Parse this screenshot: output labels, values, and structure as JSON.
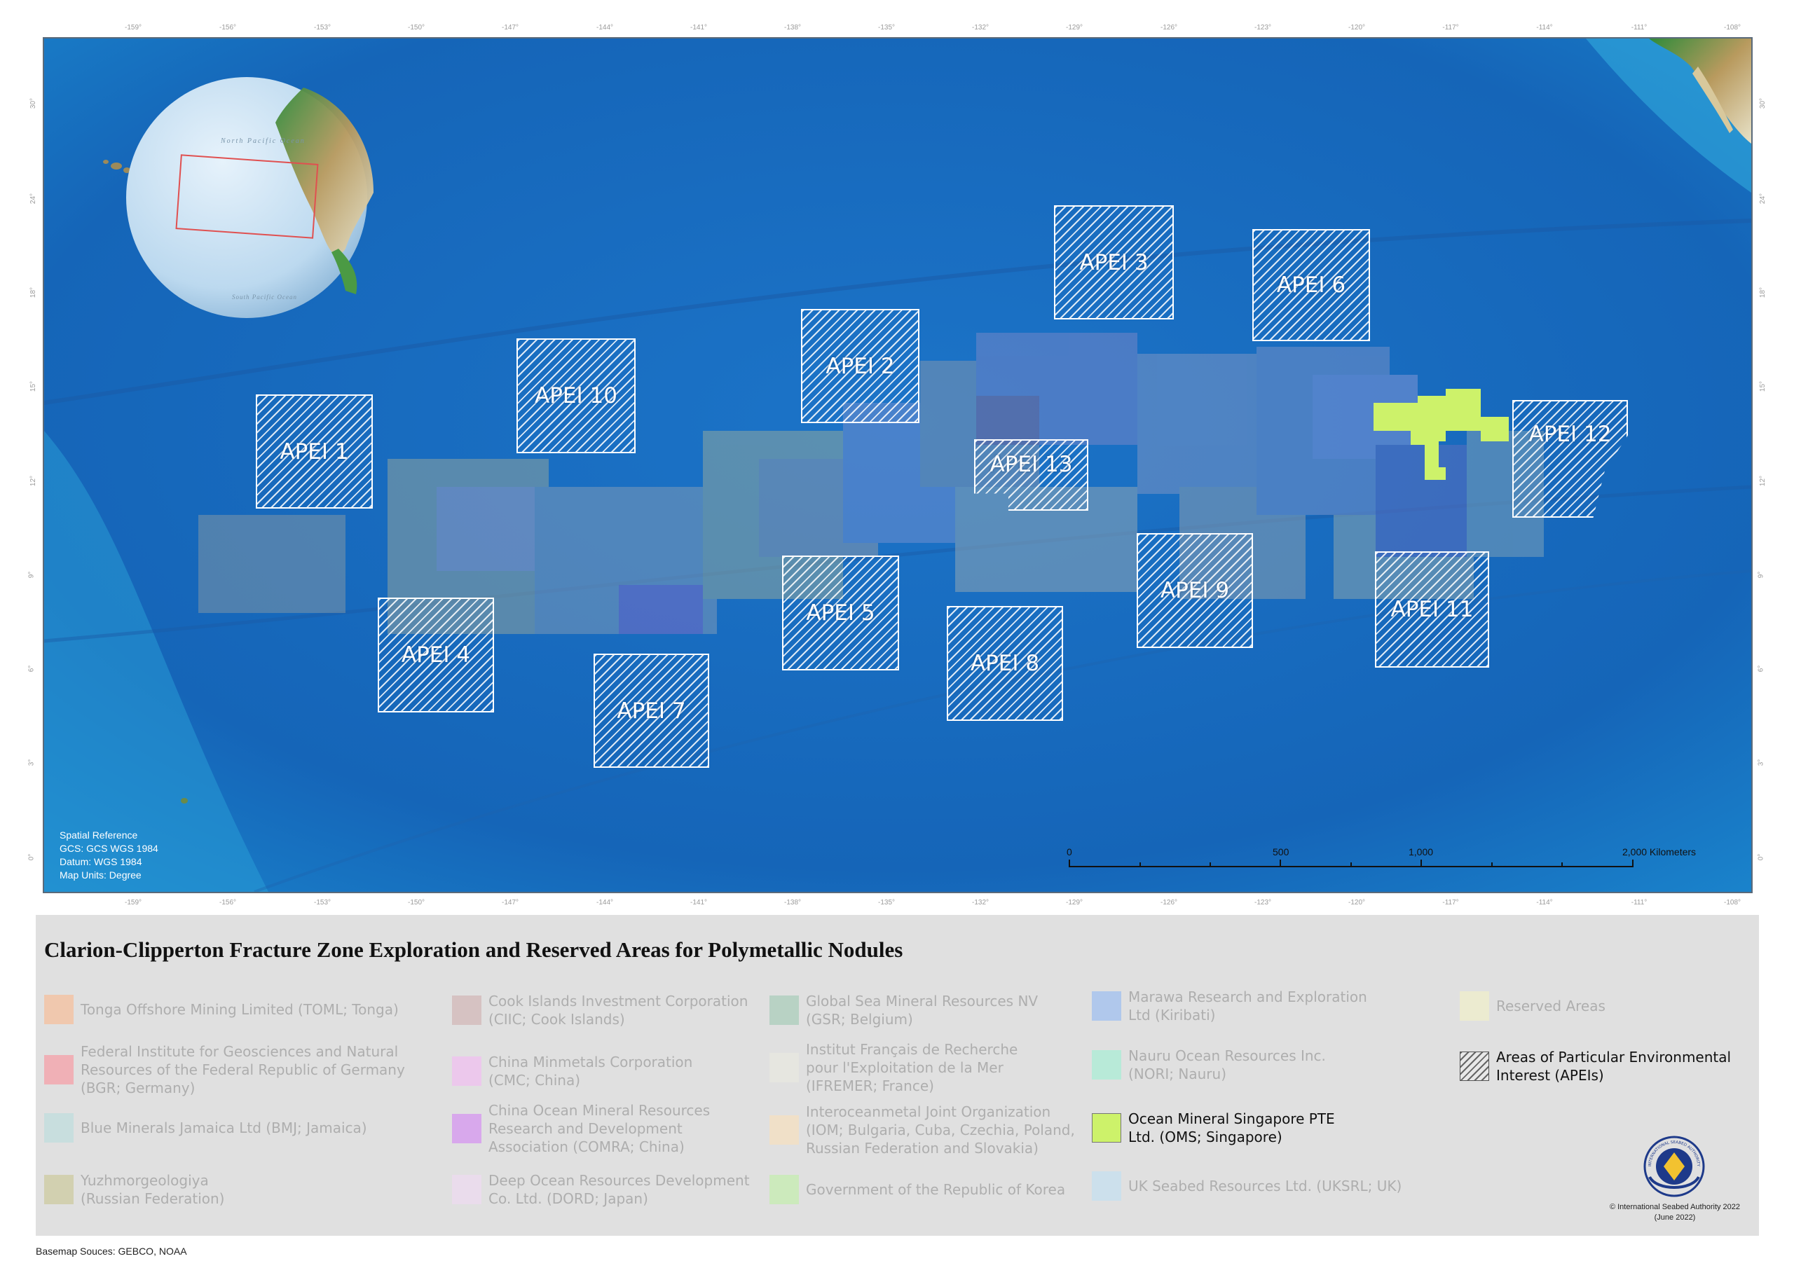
{
  "map": {
    "top_ticks": [
      "-159°",
      "-156°",
      "-153°",
      "-150°",
      "-147°",
      "-144°",
      "-141°",
      "-138°",
      "-135°",
      "-132°",
      "-129°",
      "-126°",
      "-123°",
      "-120°",
      "-117°",
      "-114°",
      "-111°",
      "-108°"
    ],
    "side_ticks": [
      "30°",
      "24°",
      "18°",
      "15°",
      "12°",
      "9°",
      "6°",
      "3°",
      "0°"
    ],
    "globe_labels": {
      "north": "North Pacific Ocean",
      "south": "South Pacific Ocean"
    },
    "apeis": [
      "APEI 1",
      "APEI 2",
      "APEI 3",
      "APEI 4",
      "APEI 5",
      "APEI 6",
      "APEI 7",
      "APEI 8",
      "APEI 9",
      "APEI 10",
      "APEI 11",
      "APEI 12",
      "APEI 13"
    ],
    "spatial_reference": [
      "Spatial Reference",
      "GCS: GCS WGS 1984",
      "Datum: WGS 1984",
      "Map Units: Degree"
    ],
    "scalebar": {
      "labels": [
        "0",
        "500",
        "1,000",
        "2,000 Kilometers"
      ]
    },
    "colors": {
      "ocean": "#1a6fc4",
      "oms": "#cdf26a",
      "hatch": "#ffffff"
    }
  },
  "legend": {
    "title": "Clarion-Clipperton Fracture Zone Exploration and Reserved Areas for Polymetallic Nodules",
    "items": [
      {
        "label": "Tonga Offshore Mining Limited (TOML; Tonga)",
        "color": "#f0c8ae"
      },
      {
        "label": "Federal Institute for Geosciences and Natural Resources of the Federal Republic of Germany (BGR; Germany)",
        "color": "#f0b0b6"
      },
      {
        "label": "Blue Minerals Jamaica Ltd (BMJ; Jamaica)",
        "color": "#c8dede"
      },
      {
        "label": "Yuzhmorgeologiya (Russian Federation)",
        "color": "#d2d0b0"
      },
      {
        "label": "Cook Islands Investment Corporation (CIIC; Cook Islands)",
        "color": "#d6c2c2"
      },
      {
        "label": "China Minmetals Corporation (CMC; China)",
        "color": "#ecc8ec"
      },
      {
        "label": "China Ocean Mineral Resources Research and Development Association (COMRA; China)",
        "color": "#d8a8ec"
      },
      {
        "label": "Deep Ocean Resources Development Co. Ltd. (DORD; Japan)",
        "color": "#eadcec"
      },
      {
        "label": "Global Sea Mineral Resources NV (GSR; Belgium)",
        "color": "#b8d2c4"
      },
      {
        "label": "Institut Français de Recherche pour l'Exploitation de la Mer (IFREMER; France)",
        "color": "#e6e6e0"
      },
      {
        "label": "Interoceanmetal Joint Organization (IOM; Bulgaria, Cuba, Czechia, Poland, Russian Federation and Slovakia)",
        "color": "#f0e0c8"
      },
      {
        "label": "Government of the Republic of Korea",
        "color": "#cceabc"
      },
      {
        "label": "Marawa Research and Exploration Ltd (Kiribati)",
        "color": "#b0c8ec"
      },
      {
        "label": "Nauru Ocean Resources Inc. (NORI; Nauru)",
        "color": "#b8ead8"
      },
      {
        "label": "Ocean Mineral Singapore PTE Ltd. (OMS; Singapore)",
        "color": "#cdf26a"
      },
      {
        "label": "UK Seabed Resources Ltd. (UKSRL; UK)",
        "color": "#cce0ec"
      },
      {
        "label": "Reserved Areas",
        "color": "#ecebd0"
      },
      {
        "label": "Areas of Particular Environmental Interest (APEIs)",
        "color": "hatch"
      }
    ]
  },
  "footer": {
    "copyright": "© International Seabed Authority 2022",
    "date": "(June 2022)",
    "logo_text": "INTERNATIONAL SEABED AUTHORITY",
    "basemap": "Basemap Souces: GEBCO, NOAA"
  }
}
